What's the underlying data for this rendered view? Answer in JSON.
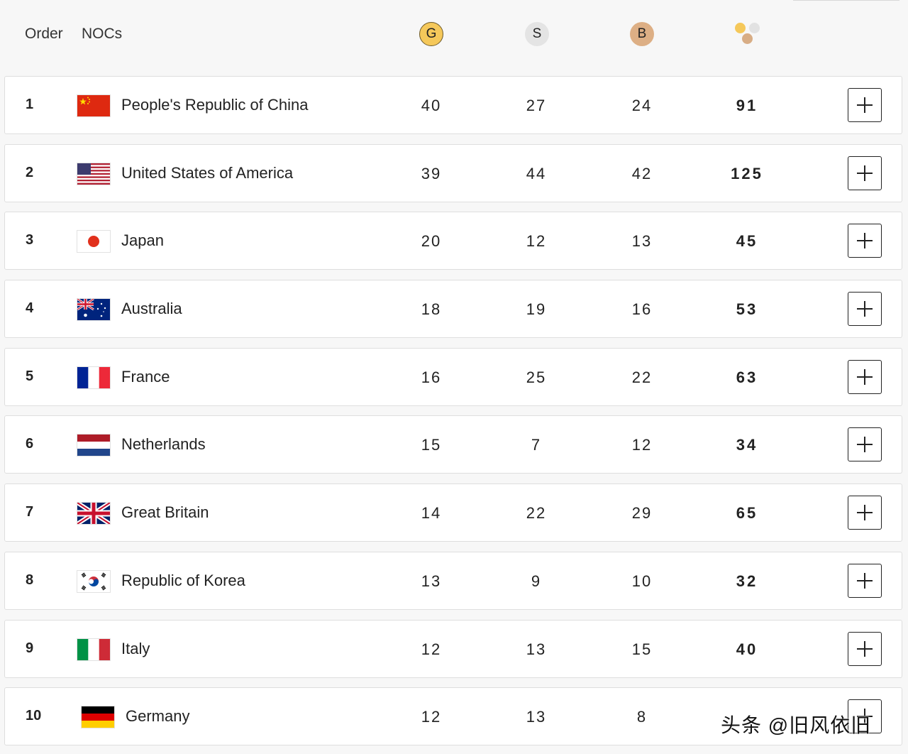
{
  "header": {
    "order_label": "Order",
    "nocs_label": "NOCs",
    "gold_label": "G",
    "silver_label": "S",
    "bronze_label": "B",
    "total_icon": "medals-total-icon"
  },
  "colors": {
    "gold": "#f5c85a",
    "silver": "#e4e4e4",
    "bronze": "#ddaf85"
  },
  "rows": [
    {
      "rank": "1",
      "country": "People's Republic of China",
      "flag": "china-flag-icon",
      "gold": "40",
      "silver": "27",
      "bronze": "24",
      "total": "91"
    },
    {
      "rank": "2",
      "country": "United States of America",
      "flag": "usa-flag-icon",
      "gold": "39",
      "silver": "44",
      "bronze": "42",
      "total": "125"
    },
    {
      "rank": "3",
      "country": "Japan",
      "flag": "japan-flag-icon",
      "gold": "20",
      "silver": "12",
      "bronze": "13",
      "total": "45"
    },
    {
      "rank": "4",
      "country": "Australia",
      "flag": "australia-flag-icon",
      "gold": "18",
      "silver": "19",
      "bronze": "16",
      "total": "53"
    },
    {
      "rank": "5",
      "country": "France",
      "flag": "france-flag-icon",
      "gold": "16",
      "silver": "25",
      "bronze": "22",
      "total": "63"
    },
    {
      "rank": "6",
      "country": "Netherlands",
      "flag": "netherlands-flag-icon",
      "gold": "15",
      "silver": "7",
      "bronze": "12",
      "total": "34"
    },
    {
      "rank": "7",
      "country": "Great Britain",
      "flag": "great-britain-flag-icon",
      "gold": "14",
      "silver": "22",
      "bronze": "29",
      "total": "65"
    },
    {
      "rank": "8",
      "country": "Republic of Korea",
      "flag": "korea-flag-icon",
      "gold": "13",
      "silver": "9",
      "bronze": "10",
      "total": "32"
    },
    {
      "rank": "9",
      "country": "Italy",
      "flag": "italy-flag-icon",
      "gold": "12",
      "silver": "13",
      "bronze": "15",
      "total": "40"
    },
    {
      "rank": "10",
      "country": "Germany",
      "flag": "germany-flag-icon",
      "gold": "12",
      "silver": "13",
      "bronze": "8",
      "total": ""
    }
  ],
  "watermark": "头条 @旧风依旧"
}
